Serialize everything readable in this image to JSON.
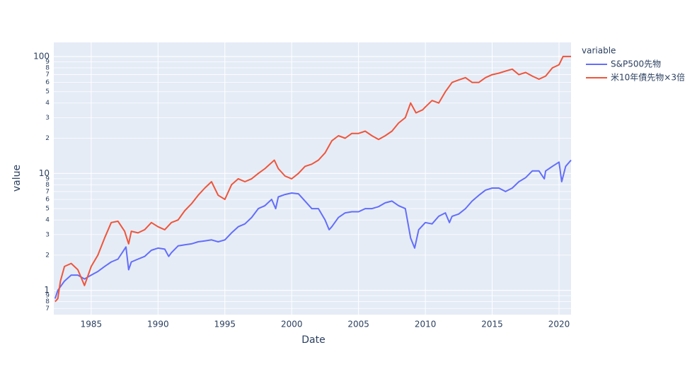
{
  "chart_data": {
    "type": "line",
    "xlabel": "Date",
    "ylabel": "value",
    "legend_title": "variable",
    "legend_position": "right",
    "log_y": true,
    "grid": true,
    "xlim": [
      1982.2,
      2020.9
    ],
    "xticks": [
      1985,
      1990,
      1995,
      2000,
      2005,
      2010,
      2015,
      2020
    ],
    "ylim": [
      0.62,
      132
    ],
    "yticks": [
      {
        "value": 0.7,
        "label": "7"
      },
      {
        "value": 0.8,
        "label": "8"
      },
      {
        "value": 0.9,
        "label": "9"
      },
      1,
      2,
      3,
      4,
      5,
      6,
      7,
      8,
      9,
      10,
      {
        "value": 20,
        "label": "2"
      },
      {
        "value": 30,
        "label": "3"
      },
      {
        "value": 40,
        "label": "4"
      },
      {
        "value": 50,
        "label": "5"
      },
      {
        "value": 60,
        "label": "6"
      },
      {
        "value": 70,
        "label": "7"
      },
      {
        "value": 80,
        "label": "8"
      },
      {
        "value": 90,
        "label": "9"
      },
      100
    ],
    "series": [
      {
        "name": "S&P500先物",
        "color": "#636efa",
        "x": [
          1982.3,
          1982.5,
          1983,
          1983.5,
          1984,
          1984.5,
          1985,
          1985.5,
          1986,
          1986.5,
          1987,
          1987.6,
          1987.8,
          1988,
          1988.5,
          1989,
          1989.5,
          1990,
          1990.5,
          1990.8,
          1991,
          1991.5,
          1992,
          1992.5,
          1993,
          1993.5,
          1994,
          1994.5,
          1995,
          1995.5,
          1996,
          1996.5,
          1997,
          1997.5,
          1998,
          1998.5,
          1998.8,
          1999,
          1999.5,
          2000,
          2000.5,
          2001,
          2001.5,
          2002,
          2002.5,
          2002.8,
          2003,
          2003.5,
          2004,
          2004.5,
          2005,
          2005.5,
          2006,
          2006.5,
          2007,
          2007.5,
          2008,
          2008.5,
          2008.9,
          2009.2,
          2009.5,
          2010,
          2010.5,
          2011,
          2011.5,
          2011.8,
          2012,
          2012.5,
          2013,
          2013.5,
          2014,
          2014.5,
          2015,
          2015.5,
          2016,
          2016.5,
          2017,
          2017.5,
          2018,
          2018.5,
          2018.9,
          2019,
          2019.5,
          2020,
          2020.2,
          2020.5,
          2020.9
        ],
        "values": [
          0.85,
          1.0,
          1.2,
          1.35,
          1.35,
          1.25,
          1.35,
          1.45,
          1.6,
          1.75,
          1.85,
          2.35,
          1.5,
          1.75,
          1.85,
          1.95,
          2.2,
          2.3,
          2.25,
          1.95,
          2.1,
          2.4,
          2.45,
          2.5,
          2.6,
          2.65,
          2.7,
          2.6,
          2.7,
          3.1,
          3.5,
          3.7,
          4.2,
          5.0,
          5.3,
          6.0,
          5.0,
          6.3,
          6.6,
          6.8,
          6.7,
          5.8,
          5.0,
          5.0,
          4.0,
          3.3,
          3.5,
          4.2,
          4.6,
          4.7,
          4.7,
          5.0,
          5.0,
          5.2,
          5.6,
          5.8,
          5.3,
          5.0,
          2.8,
          2.3,
          3.3,
          3.8,
          3.7,
          4.3,
          4.6,
          3.8,
          4.3,
          4.5,
          5.0,
          5.8,
          6.5,
          7.2,
          7.5,
          7.5,
          7.0,
          7.5,
          8.5,
          9.2,
          10.5,
          10.5,
          9.0,
          10.5,
          11.5,
          12.5,
          8.5,
          11.5,
          13
        ]
      },
      {
        "name": "米10年債先物×3倍",
        "color": "#ef553b",
        "x": [
          1982.3,
          1982.5,
          1982.7,
          1983,
          1983.5,
          1984,
          1984.5,
          1985,
          1985.5,
          1986,
          1986.5,
          1987,
          1987.5,
          1987.8,
          1988,
          1988.5,
          1989,
          1989.5,
          1990,
          1990.5,
          1991,
          1991.5,
          1992,
          1992.5,
          1993,
          1993.5,
          1994,
          1994.5,
          1995,
          1995.5,
          1996,
          1996.5,
          1997,
          1997.5,
          1998,
          1998.7,
          1999,
          1999.5,
          2000,
          2000.5,
          2001,
          2001.5,
          2002,
          2002.5,
          2003,
          2003.5,
          2004,
          2004.5,
          2005,
          2005.5,
          2006,
          2006.5,
          2007,
          2007.5,
          2008,
          2008.5,
          2008.9,
          2009.3,
          2009.8,
          2010,
          2010.5,
          2011,
          2011.5,
          2012,
          2012.5,
          2013,
          2013.5,
          2014,
          2014.5,
          2015,
          2015.5,
          2016,
          2016.5,
          2017,
          2017.5,
          2018,
          2018.5,
          2019,
          2019.5,
          2020,
          2020.3,
          2020.9
        ],
        "values": [
          0.8,
          0.85,
          1.2,
          1.6,
          1.7,
          1.5,
          1.1,
          1.6,
          2.0,
          2.8,
          3.8,
          3.9,
          3.2,
          2.5,
          3.2,
          3.1,
          3.3,
          3.8,
          3.5,
          3.3,
          3.8,
          4.0,
          4.8,
          5.5,
          6.5,
          7.5,
          8.5,
          6.5,
          6.0,
          8.0,
          9.0,
          8.5,
          9.0,
          10.0,
          11.0,
          13.0,
          11.0,
          9.5,
          9.0,
          10.0,
          11.5,
          12.0,
          13.0,
          15.0,
          19.0,
          21.0,
          20.0,
          22.0,
          22.0,
          23.0,
          21.0,
          19.5,
          21.0,
          23.0,
          27.0,
          30.0,
          40.0,
          33.0,
          35.0,
          37.0,
          42.0,
          40.0,
          50.0,
          60.0,
          63.0,
          66.0,
          60.0,
          60.0,
          66.0,
          70.0,
          72.0,
          75.0,
          78.0,
          70.0,
          73.0,
          68.0,
          64.0,
          68.0,
          80.0,
          85.0,
          100,
          100
        ]
      }
    ]
  }
}
